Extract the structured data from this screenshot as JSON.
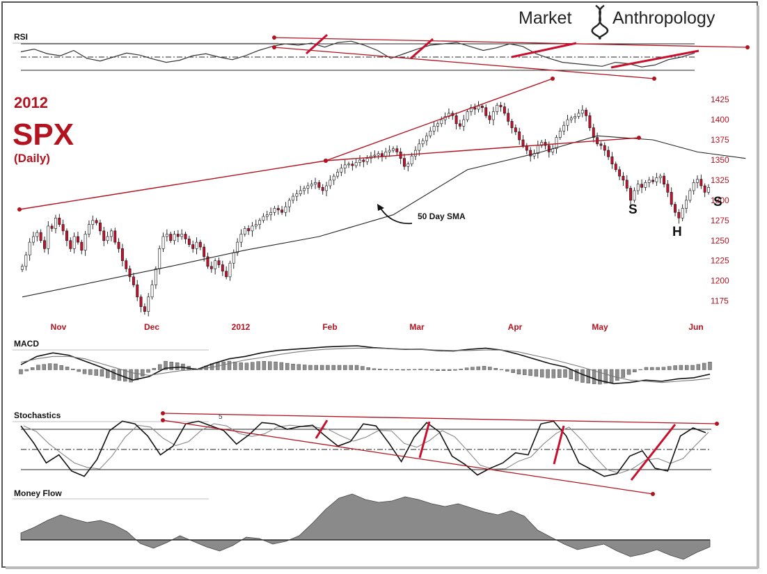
{
  "brand": {
    "word1": "Market",
    "word2": "Anthropology"
  },
  "panels": {
    "rsi": "RSI",
    "macd": "MACD",
    "stochastics": "Stochastics",
    "money_flow": "Money Flow"
  },
  "title": {
    "year": "2012",
    "ticker": "SPX",
    "period": "(Daily)"
  },
  "colors": {
    "up": "#ffffff",
    "down": "#c8102e",
    "trendline": "#b3121f",
    "frame": "#555555"
  },
  "annotations": {
    "sma": "50 Day SMA",
    "s_left": "S",
    "head": "H",
    "s_right": "S",
    "stoch_mark": "5"
  },
  "chart_data": {
    "type": "candlestick",
    "title": "SPX",
    "subtitle": "2012 (Daily)",
    "x_ticks": [
      "Nov",
      "Dec",
      "2012",
      "Feb",
      "Mar",
      "Apr",
      "May",
      "Jun"
    ],
    "y_ticks": [
      1175,
      1200,
      1225,
      1250,
      1275,
      1300,
      1325,
      1350,
      1375,
      1400,
      1425
    ],
    "ylim": [
      1160,
      1432
    ],
    "close": [
      1218,
      1232,
      1248,
      1255,
      1260,
      1250,
      1240,
      1268,
      1265,
      1278,
      1270,
      1262,
      1250,
      1240,
      1255,
      1248,
      1238,
      1258,
      1270,
      1275,
      1272,
      1262,
      1250,
      1255,
      1262,
      1248,
      1240,
      1225,
      1215,
      1205,
      1195,
      1180,
      1168,
      1162,
      1180,
      1195,
      1215,
      1240,
      1255,
      1258,
      1250,
      1258,
      1255,
      1258,
      1252,
      1245,
      1240,
      1248,
      1242,
      1230,
      1218,
      1215,
      1225,
      1220,
      1212,
      1205,
      1222,
      1235,
      1248,
      1258,
      1265,
      1262,
      1268,
      1270,
      1275,
      1280,
      1282,
      1285,
      1290,
      1288,
      1285,
      1292,
      1300,
      1305,
      1308,
      1312,
      1315,
      1318,
      1320,
      1322,
      1316,
      1312,
      1318,
      1325,
      1330,
      1335,
      1340,
      1344,
      1345,
      1343,
      1347,
      1350,
      1348,
      1352,
      1355,
      1356,
      1358,
      1355,
      1360,
      1362,
      1364,
      1360,
      1352,
      1342,
      1345,
      1355,
      1362,
      1370,
      1374,
      1380,
      1386,
      1392,
      1395,
      1400,
      1404,
      1408,
      1405,
      1395,
      1392,
      1400,
      1410,
      1415,
      1413,
      1417,
      1415,
      1405,
      1400,
      1410,
      1418,
      1416,
      1408,
      1398,
      1390,
      1385,
      1375,
      1368,
      1362,
      1355,
      1358,
      1368,
      1372,
      1368,
      1360,
      1364,
      1378,
      1386,
      1393,
      1400,
      1402,
      1404,
      1408,
      1412,
      1405,
      1390,
      1378,
      1370,
      1368,
      1362,
      1354,
      1345,
      1338,
      1330,
      1325,
      1315,
      1300,
      1312,
      1320,
      1316,
      1322,
      1325,
      1323,
      1328,
      1330,
      1320,
      1310,
      1295,
      1285,
      1278,
      1290,
      1300,
      1312,
      1322,
      1326,
      1318,
      1310,
      1316
    ],
    "sma50": [
      {
        "x": 0,
        "y": 1180
      },
      {
        "x": 40,
        "y": 1218
      },
      {
        "x": 60,
        "y": 1238
      },
      {
        "x": 80,
        "y": 1255
      },
      {
        "x": 100,
        "y": 1282
      },
      {
        "x": 120,
        "y": 1338
      },
      {
        "x": 140,
        "y": 1360
      },
      {
        "x": 155,
        "y": 1380
      },
      {
        "x": 170,
        "y": 1375
      },
      {
        "x": 182,
        "y": 1360
      },
      {
        "x": 195,
        "y": 1352
      }
    ],
    "trendlines": [
      {
        "from": [
          0,
          1295
        ],
        "to": [
          89,
          1344
        ]
      },
      {
        "from": [
          89,
          1344
        ],
        "to": [
          171,
          1374
        ]
      },
      {
        "from": [
          89,
          1344
        ],
        "to": [
          150,
          1431
        ]
      }
    ],
    "pattern": {
      "name": "head and shoulders",
      "left_shoulder": 1296,
      "head": 1267,
      "right_shoulder": 1300
    }
  },
  "rsi": {
    "ylim": [
      0,
      100
    ],
    "levels": [
      70,
      50,
      30
    ],
    "values": [
      58,
      62,
      55,
      52,
      60,
      48,
      44,
      50,
      56,
      53,
      47,
      42,
      45,
      52,
      55,
      50,
      46,
      52,
      60,
      66,
      70,
      68,
      71,
      65,
      72,
      74,
      68,
      60,
      48,
      55,
      62,
      68,
      70,
      72,
      66,
      60,
      64,
      70,
      66,
      55,
      48,
      42,
      40,
      38,
      36,
      42,
      40,
      35,
      38,
      46,
      50,
      56
    ]
  },
  "macd": {
    "line": [
      0.2,
      0.55,
      0.7,
      0.6,
      0.35,
      0.1,
      -0.2,
      -0.45,
      -0.3,
      0.05,
      0.1,
      0.0,
      0.25,
      0.45,
      0.55,
      0.7,
      0.8,
      0.85,
      0.9,
      0.95,
      0.98,
      1.0,
      0.92,
      0.88,
      0.85,
      0.85,
      0.8,
      0.78,
      0.85,
      0.9,
      0.82,
      0.65,
      0.45,
      0.25,
      0.1,
      -0.2,
      -0.45,
      -0.6,
      -0.55,
      -0.45,
      -0.5,
      -0.4,
      -0.35,
      -0.2
    ],
    "signal": [
      0.3,
      0.45,
      0.55,
      0.55,
      0.45,
      0.25,
      0.05,
      -0.15,
      -0.25,
      -0.15,
      -0.05,
      0.0,
      0.1,
      0.25,
      0.4,
      0.5,
      0.62,
      0.72,
      0.8,
      0.85,
      0.88,
      0.9,
      0.9,
      0.88,
      0.86,
      0.84,
      0.82,
      0.8,
      0.8,
      0.82,
      0.82,
      0.75,
      0.6,
      0.45,
      0.28,
      0.1,
      -0.1,
      -0.3,
      -0.45,
      -0.5,
      -0.55,
      -0.5,
      -0.45,
      -0.38
    ]
  },
  "stochastics": {
    "ylim": [
      0,
      100
    ],
    "levels": [
      80,
      50,
      20
    ],
    "k": [
      85,
      60,
      30,
      42,
      18,
      10,
      35,
      78,
      92,
      88,
      70,
      42,
      55,
      88,
      92,
      85,
      78,
      58,
      72,
      90,
      88,
      80,
      84,
      86,
      70,
      55,
      62,
      88,
      85,
      60,
      32,
      68,
      90,
      76,
      40,
      28,
      12,
      22,
      30,
      45,
      42,
      88,
      92,
      70,
      30,
      20,
      10,
      14,
      40,
      48,
      22,
      18,
      70,
      82,
      75
    ]
  },
  "money_flow": {
    "values": [
      10,
      18,
      28,
      36,
      30,
      25,
      28,
      22,
      12,
      -5,
      -12,
      -4,
      6,
      -2,
      -10,
      -16,
      -8,
      4,
      2,
      -6,
      -2,
      6,
      24,
      44,
      60,
      66,
      58,
      54,
      56,
      62,
      58,
      52,
      48,
      52,
      46,
      40,
      36,
      42,
      34,
      14,
      4,
      -6,
      -14,
      -10,
      -6,
      -16,
      -24,
      -20,
      -14,
      -22,
      -28,
      -18,
      -10
    ]
  }
}
